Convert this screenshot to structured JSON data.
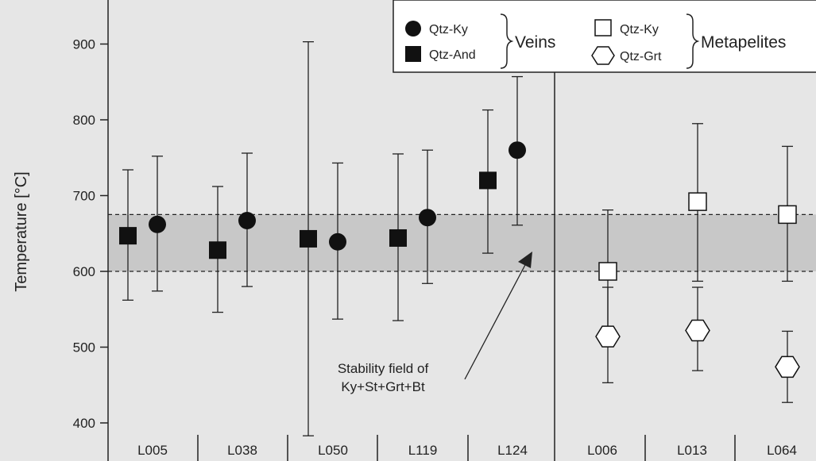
{
  "chart_data": {
    "type": "scatter",
    "ylabel": "Temperature [°C]",
    "ylim": [
      365,
      955
    ],
    "yticks": [
      400,
      500,
      600,
      700,
      800,
      900
    ],
    "categories": [
      "L005",
      "L038",
      "L050",
      "L119",
      "L124",
      "L006",
      "L013",
      "L064"
    ],
    "groups": [
      {
        "name": "Veins",
        "categories": [
          "L005",
          "L038",
          "L050",
          "L119",
          "L124"
        ]
      },
      {
        "name": "Metapelites",
        "categories": [
          "L006",
          "L013",
          "L064"
        ]
      }
    ],
    "stability_band": {
      "from": 600,
      "to": 675,
      "label_line1": "Stability field of",
      "label_line2": "Ky+St+Grt+Bt"
    },
    "series": [
      {
        "name": "Qtz-Ky",
        "group": "Veins",
        "marker": "filled-circle",
        "points": [
          {
            "category": "L005",
            "y": 662,
            "low": 574,
            "high": 752
          },
          {
            "category": "L038",
            "y": 667,
            "low": 580,
            "high": 756
          },
          {
            "category": "L050",
            "y": 639,
            "low": 537,
            "high": 743
          },
          {
            "category": "L119",
            "y": 671,
            "low": 584,
            "high": 760
          },
          {
            "category": "L124",
            "y": 760,
            "low": 661,
            "high": 857
          }
        ]
      },
      {
        "name": "Qtz-And",
        "group": "Veins",
        "marker": "filled-square",
        "points": [
          {
            "category": "L005",
            "y": 647,
            "low": 562,
            "high": 734
          },
          {
            "category": "L038",
            "y": 628,
            "low": 546,
            "high": 712
          },
          {
            "category": "L050",
            "y": 643,
            "low": 383,
            "high": 903
          },
          {
            "category": "L119",
            "y": 644,
            "low": 535,
            "high": 755
          },
          {
            "category": "L124",
            "y": 720,
            "low": 624,
            "high": 813
          }
        ]
      },
      {
        "name": "Qtz-Ky",
        "group": "Metapelites",
        "marker": "open-square",
        "points": [
          {
            "category": "L006",
            "y": 600,
            "low": 518,
            "high": 681
          },
          {
            "category": "L013",
            "y": 692,
            "low": 587,
            "high": 795
          },
          {
            "category": "L064",
            "y": 675,
            "low": 587,
            "high": 765
          }
        ]
      },
      {
        "name": "Qtz-Grt",
        "group": "Metapelites",
        "marker": "open-hexagon",
        "points": [
          {
            "category": "L006",
            "y": 514,
            "low": 453,
            "high": 579
          },
          {
            "category": "L013",
            "y": 522,
            "low": 469,
            "high": 579
          },
          {
            "category": "L064",
            "y": 474,
            "low": 427,
            "high": 521
          }
        ]
      }
    ]
  },
  "legend": {
    "veins_label": "Veins",
    "metapelites_label": "Metapelites",
    "items": [
      "Qtz-Ky",
      "Qtz-And",
      "Qtz-Ky",
      "Qtz-Grt"
    ]
  }
}
